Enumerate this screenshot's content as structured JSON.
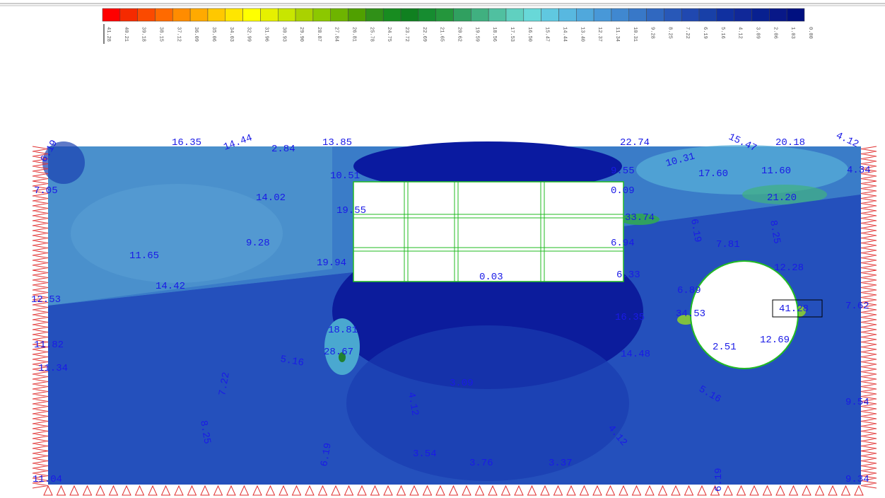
{
  "colorbar": {
    "labels": [
      "41.28",
      "40.21",
      "39.18",
      "38.15",
      "37.12",
      "36.09",
      "35.06",
      "34.03",
      "32.99",
      "31.96",
      "30.93",
      "29.90",
      "28.87",
      "27.84",
      "26.81",
      "25.78",
      "24.75",
      "23.72",
      "22.69",
      "21.65",
      "20.62",
      "19.59",
      "18.56",
      "17.53",
      "16.50",
      "15.47",
      "14.44",
      "13.40",
      "12.37",
      "11.34",
      "10.31",
      "9.28",
      "8.25",
      "7.22",
      "6.19",
      "5.16",
      "4.12",
      "3.09",
      "2.06",
      "1.03",
      "0.00"
    ],
    "colors": [
      "#ff0000",
      "#f52a00",
      "#fb4a00",
      "#ff6a00",
      "#ff8c00",
      "#ffaa00",
      "#ffc800",
      "#ffe600",
      "#ffff00",
      "#e6f000",
      "#c8e600",
      "#aad200",
      "#8cc800",
      "#6eb400",
      "#50a000",
      "#309018",
      "#188c20",
      "#108020",
      "#168c30",
      "#24963c",
      "#30a060",
      "#40b080",
      "#50c0a0",
      "#60d0c0",
      "#68d8d8",
      "#60c8e0",
      "#58b8e0",
      "#50a8dc",
      "#4898d8",
      "#4088d0",
      "#3878c8",
      "#3068c0",
      "#2858b8",
      "#2048b0",
      "#1840a8",
      "#1030a0",
      "#102898",
      "#082090",
      "#081888",
      "#001080"
    ]
  },
  "contour_labels": [
    "16.35",
    "14.44",
    "2.84",
    "13.85",
    "22.74",
    "15.47",
    "20.18",
    "4.12",
    "6.19",
    "7.05",
    "10.51",
    "14.02",
    "19.55",
    "9.55",
    "10.31",
    "17.60",
    "11.60",
    "4.34",
    "0.09",
    "21.20",
    "33.74",
    "9.28",
    "11.65",
    "6.94",
    "7.81",
    "8.25",
    "6.19",
    "19.94",
    "0.03",
    "6.33",
    "12.28",
    "14.42",
    "6.89",
    "12.53",
    "34.53",
    "41.28",
    "7.62",
    "16.35",
    "18.81",
    "11.82",
    "28.67",
    "5.16",
    "14.48",
    "2.51",
    "12.69",
    "11.34",
    "7.22",
    "3.09",
    "4.12",
    "5.16",
    "9.54",
    "8.25",
    "6.19",
    "4.12",
    "3.54",
    "3.76",
    "3.37",
    "11.04",
    "6.19",
    "9.34"
  ]
}
